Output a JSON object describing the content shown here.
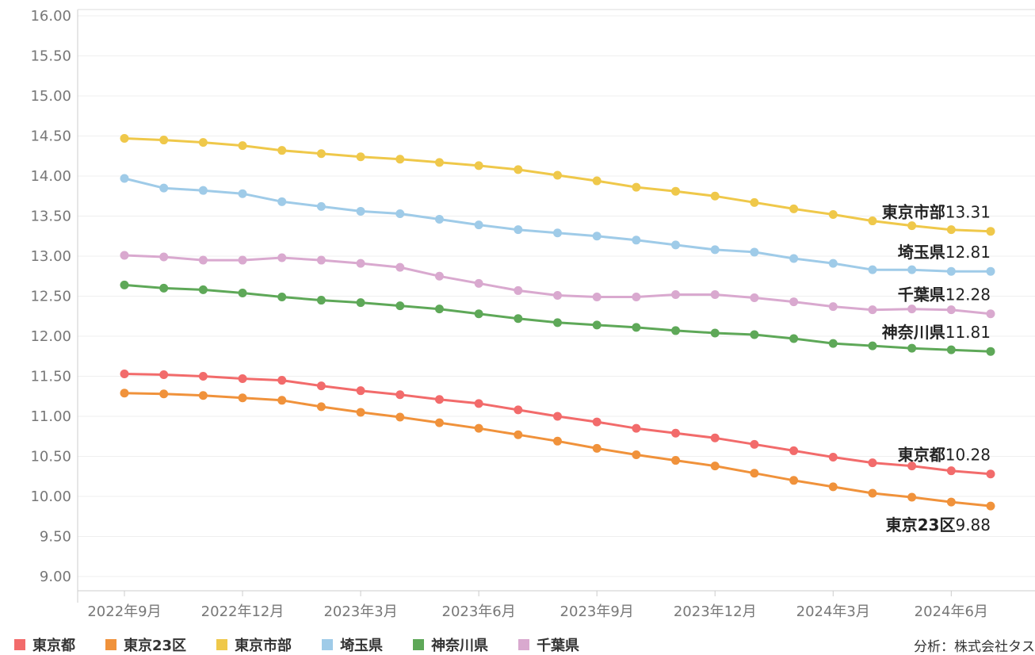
{
  "chart_data": {
    "type": "line",
    "title": "",
    "xlabel": "",
    "ylabel": "",
    "ylim": [
      9.0,
      16.0
    ],
    "y_ticks": [
      "16.00",
      "15.50",
      "15.00",
      "14.50",
      "14.00",
      "13.50",
      "13.00",
      "12.50",
      "12.00",
      "11.50",
      "11.00",
      "10.50",
      "10.00",
      "9.50",
      "9.00"
    ],
    "grid": "horizontal",
    "legend_position": "bottom",
    "x": [
      "2022-09",
      "2022-10",
      "2022-11",
      "2022-12",
      "2023-01",
      "2023-02",
      "2023-03",
      "2023-04",
      "2023-05",
      "2023-06",
      "2023-07",
      "2023-08",
      "2023-09",
      "2023-10",
      "2023-11",
      "2023-12",
      "2024-01",
      "2024-02",
      "2024-03",
      "2024-04",
      "2024-05",
      "2024-06",
      "2024-07"
    ],
    "x_tick_labels": [
      {
        "at": "2022-09",
        "label": "2022年9月"
      },
      {
        "at": "2022-12",
        "label": "2022年12月"
      },
      {
        "at": "2023-03",
        "label": "2023年3月"
      },
      {
        "at": "2023-06",
        "label": "2023年6月"
      },
      {
        "at": "2023-09",
        "label": "2023年9月"
      },
      {
        "at": "2023-12",
        "label": "2023年12月"
      },
      {
        "at": "2024-03",
        "label": "2024年3月"
      },
      {
        "at": "2024-06",
        "label": "2024年6月"
      }
    ],
    "series": [
      {
        "name": "東京都",
        "color": "#f26b6b",
        "end_label": "10.28",
        "values": [
          11.53,
          11.52,
          11.5,
          11.47,
          11.45,
          11.38,
          11.32,
          11.27,
          11.21,
          11.16,
          11.08,
          11.0,
          10.93,
          10.85,
          10.79,
          10.73,
          10.65,
          10.57,
          10.49,
          10.42,
          10.38,
          10.32,
          10.28
        ]
      },
      {
        "name": "東京23区",
        "color": "#f0923b",
        "end_label": "9.88",
        "values": [
          11.29,
          11.28,
          11.26,
          11.23,
          11.2,
          11.12,
          11.05,
          10.99,
          10.92,
          10.85,
          10.77,
          10.69,
          10.6,
          10.52,
          10.45,
          10.38,
          10.29,
          10.2,
          10.12,
          10.04,
          9.99,
          9.93,
          9.88
        ]
      },
      {
        "name": "東京市部",
        "color": "#efc84a",
        "end_label": "13.31",
        "values": [
          14.47,
          14.45,
          14.42,
          14.38,
          14.32,
          14.28,
          14.24,
          14.21,
          14.17,
          14.13,
          14.08,
          14.01,
          13.94,
          13.86,
          13.81,
          13.75,
          13.67,
          13.59,
          13.52,
          13.44,
          13.38,
          13.33,
          13.31
        ]
      },
      {
        "name": "埼玉県",
        "color": "#9fcbe8",
        "end_label": "12.81",
        "values": [
          13.97,
          13.85,
          13.82,
          13.78,
          13.68,
          13.62,
          13.56,
          13.53,
          13.46,
          13.39,
          13.33,
          13.29,
          13.25,
          13.2,
          13.14,
          13.08,
          13.05,
          12.97,
          12.91,
          12.83,
          12.83,
          12.81,
          12.81
        ]
      },
      {
        "name": "神奈川県",
        "color": "#5ea858",
        "end_label": "11.81",
        "values": [
          12.64,
          12.6,
          12.58,
          12.54,
          12.49,
          12.45,
          12.42,
          12.38,
          12.34,
          12.28,
          12.22,
          12.17,
          12.14,
          12.11,
          12.07,
          12.04,
          12.02,
          11.97,
          11.91,
          11.88,
          11.85,
          11.83,
          11.81
        ]
      },
      {
        "name": "千葉県",
        "color": "#d9a9cf",
        "end_label": "12.28",
        "values": [
          13.01,
          12.99,
          12.95,
          12.95,
          12.98,
          12.95,
          12.91,
          12.86,
          12.75,
          12.66,
          12.57,
          12.51,
          12.49,
          12.49,
          12.52,
          12.52,
          12.48,
          12.43,
          12.37,
          12.33,
          12.34,
          12.33,
          12.28
        ]
      }
    ]
  },
  "credit": "分析：株式会社タス"
}
